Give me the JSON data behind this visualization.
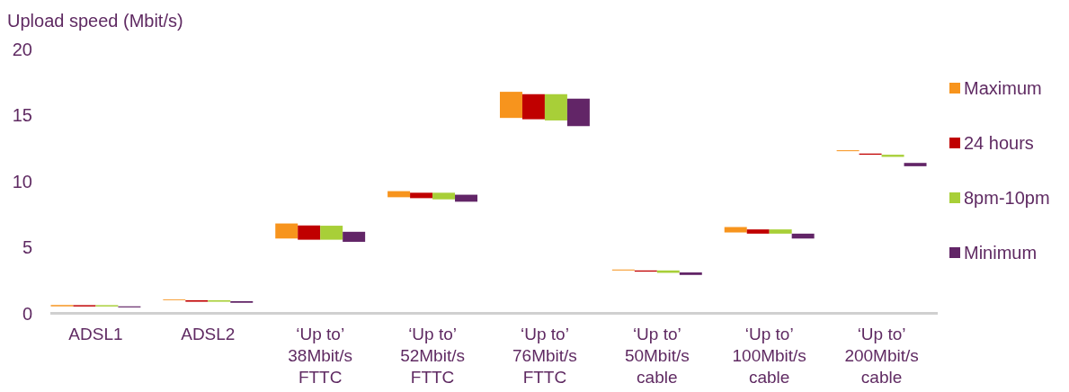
{
  "chart_data": {
    "type": "bar",
    "ylabel": "Upload speed (Mbit/s)",
    "categories": [
      "ADSL1",
      "ADSL2",
      "‘Up to’\n38Mbit/s\nFTTC",
      "‘Up to’\n52Mbit/s\nFTTC",
      "‘Up to’\n76Mbit/s\nFTTC",
      "‘Up to’\n50Mbit/s\ncable",
      "‘Up to’\n100Mbit/s\ncable",
      "‘Up to’\n200Mbit/s\ncable"
    ],
    "series": [
      {
        "name": "Maximum",
        "color": "#f7941d",
        "base": [
          0.53,
          1.0,
          5.67,
          8.8,
          14.81,
          3.25,
          6.13,
          12.29
        ],
        "values": [
          0.1,
          0.06,
          1.14,
          0.46,
          1.98,
          0.07,
          0.41,
          0.07
        ]
      },
      {
        "name": "24 hours",
        "color": "#c00000",
        "base": [
          0.52,
          0.88,
          5.58,
          8.73,
          14.71,
          3.16,
          6.04,
          12.02
        ],
        "values": [
          0.1,
          0.11,
          1.08,
          0.41,
          1.9,
          0.09,
          0.32,
          0.09
        ]
      },
      {
        "name": "8pm-10pm",
        "color": "#a8cf38",
        "base": [
          0.52,
          0.88,
          5.58,
          8.64,
          14.62,
          3.07,
          6.04,
          11.86
        ],
        "values": [
          0.1,
          0.11,
          1.06,
          0.5,
          1.99,
          0.18,
          0.32,
          0.16
        ]
      },
      {
        "name": "Minimum",
        "color": "#622567",
        "base": [
          0.45,
          0.8,
          5.42,
          8.46,
          14.19,
          2.91,
          5.67,
          11.15
        ],
        "values": [
          0.08,
          0.12,
          0.76,
          0.53,
          2.08,
          0.19,
          0.37,
          0.25
        ]
      }
    ],
    "ylim": [
      0,
      20
    ],
    "yticks": [
      0,
      5,
      10,
      15,
      20
    ],
    "grid": false,
    "legend": "right"
  }
}
